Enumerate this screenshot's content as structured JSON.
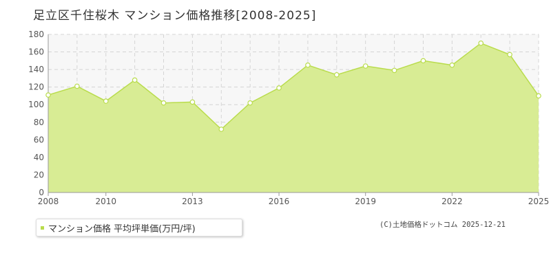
{
  "title": "足立区千住桜木 マンション価格推移[2008-2025]",
  "chart_data": {
    "type": "area",
    "x": [
      2008,
      2009,
      2010,
      2011,
      2012,
      2013,
      2014,
      2015,
      2016,
      2017,
      2018,
      2019,
      2020,
      2021,
      2022,
      2023,
      2024,
      2025
    ],
    "series": [
      {
        "name": "マンション価格 平均坪単価(万円/坪)",
        "values": [
          111,
          121,
          104,
          128,
          102,
          103,
          72,
          102,
          119,
          145,
          134,
          144,
          139,
          150,
          145,
          170,
          157,
          110
        ]
      }
    ],
    "x_tick_labels": [
      "2008",
      "2010",
      "2013",
      "2016",
      "2019",
      "2022",
      "2025"
    ],
    "y_tick_labels": [
      "0",
      "20",
      "40",
      "60",
      "80",
      "100",
      "120",
      "140",
      "160",
      "180"
    ],
    "xlim": [
      2008,
      2025
    ],
    "ylim": [
      0,
      180
    ],
    "grid": true,
    "legend_position": "bottom-left"
  },
  "legend": {
    "label": "マンション価格 平均坪単価(万円/坪)"
  },
  "credit": "(C)土地価格ドットコム 2025-12-21",
  "colors": {
    "fill": "#d8ec94",
    "line": "#b9dc4c",
    "marker_fill": "#ffffff",
    "plot_bg": "#f7f7f7",
    "grid": "#d4d4d4"
  }
}
